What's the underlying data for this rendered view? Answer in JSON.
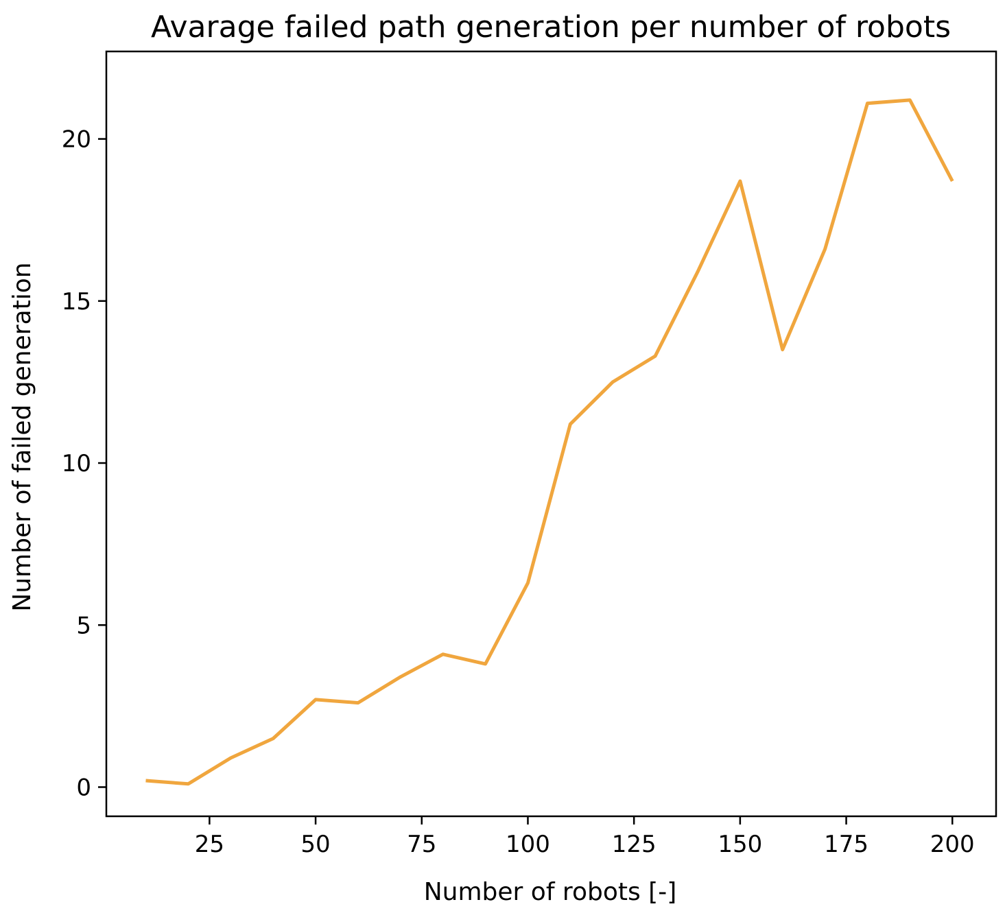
{
  "chart_data": {
    "type": "line",
    "title": "Avarage failed path generation per number of robots",
    "xlabel": "Number of robots [-]",
    "ylabel": "Number of failed generation",
    "xlim": [
      0.7,
      210.3
    ],
    "ylim": [
      -0.9,
      22.7
    ],
    "xticks": [
      25,
      50,
      75,
      100,
      125,
      150,
      175,
      200
    ],
    "yticks": [
      0,
      5,
      10,
      15,
      20
    ],
    "grid": false,
    "legend": "none",
    "series": [
      {
        "color": "#F0A63E",
        "x": [
          10,
          20,
          30,
          40,
          50,
          60,
          70,
          80,
          90,
          100,
          110,
          120,
          130,
          140,
          150,
          160,
          170,
          180,
          190,
          200
        ],
        "y": [
          0.2,
          0.1,
          0.9,
          1.5,
          2.7,
          2.6,
          3.4,
          4.1,
          3.8,
          6.3,
          11.2,
          12.5,
          13.3,
          15.9,
          18.7,
          13.5,
          16.6,
          21.1,
          21.2,
          18.7
        ]
      }
    ]
  }
}
